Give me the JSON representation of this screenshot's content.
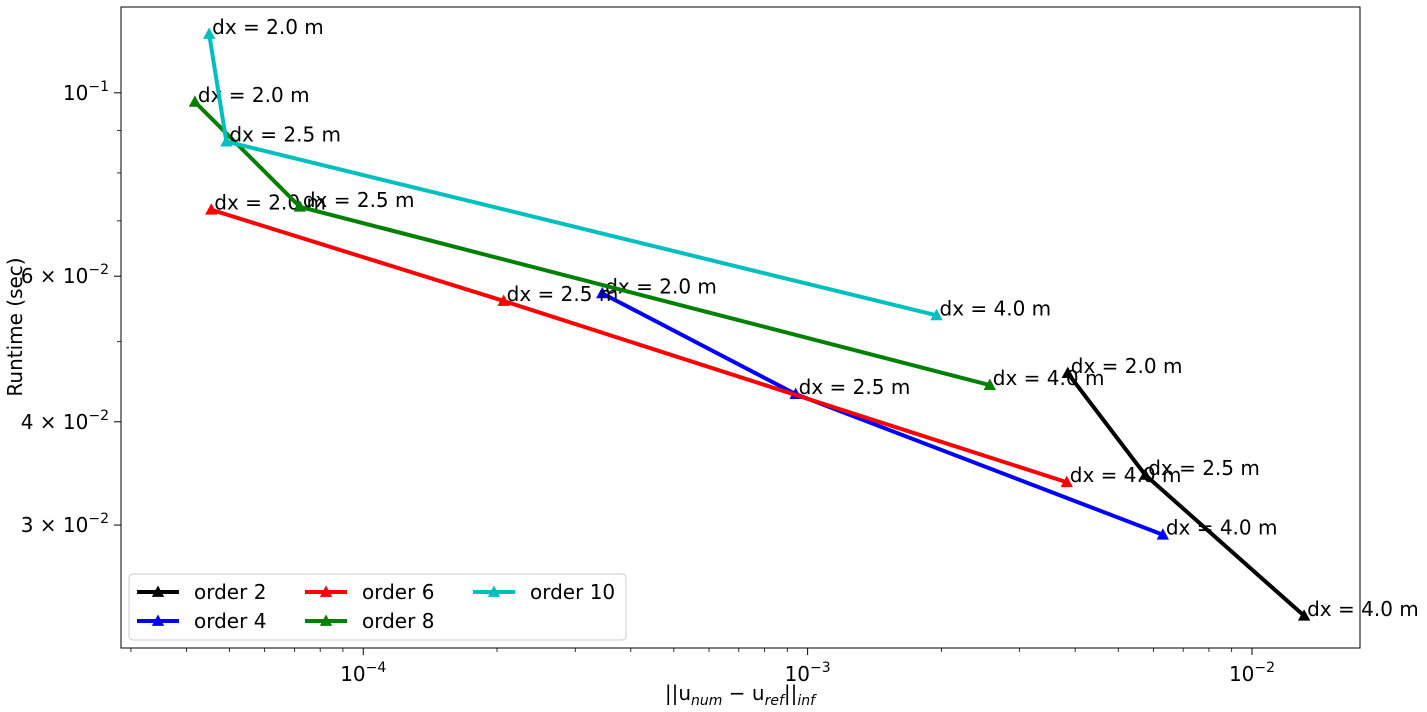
{
  "chart_data": {
    "type": "line",
    "title": "",
    "xscale": "log",
    "yscale": "log",
    "xlim": [
      2.85e-05,
      0.0175
    ],
    "ylim": [
      0.0213,
      0.127
    ],
    "xlabel": {
      "prefix": "||u",
      "sub1": "num",
      "mid": " − u",
      "sub2": "ref",
      "suffix": "||",
      "sub3": "inf"
    },
    "ylabel": "Runtime (sec)",
    "x_major_ticks": [
      {
        "value": 0.0001,
        "base": "10",
        "exp": "−4"
      },
      {
        "value": 0.001,
        "base": "10",
        "exp": "−3"
      },
      {
        "value": 0.01,
        "base": "10",
        "exp": "−2"
      }
    ],
    "y_major_ticks": [
      {
        "value": 0.1,
        "pre": "10",
        "exp": "−1"
      },
      {
        "value": 0.06,
        "pre": "6 × 10",
        "exp": "−2"
      },
      {
        "value": 0.04,
        "pre": "4 × 10",
        "exp": "−2"
      },
      {
        "value": 0.03,
        "pre": "3 × 10",
        "exp": "−2"
      }
    ],
    "grid": false,
    "legend": {
      "placement": "lower-left",
      "columns": 3
    },
    "series": [
      {
        "name": "order 2",
        "color": "#000000",
        "marker": "triangle-up",
        "points": [
          {
            "x": 0.00385,
            "y": 0.0458,
            "label": "dx = 2.0 m"
          },
          {
            "x": 0.00575,
            "y": 0.0345,
            "label": "dx = 2.5 m"
          },
          {
            "x": 0.0131,
            "y": 0.0233,
            "label": "dx = 4.0 m"
          }
        ]
      },
      {
        "name": "order 4",
        "color": "#0000ff",
        "marker": "triangle-up",
        "points": [
          {
            "x": 0.000345,
            "y": 0.0572,
            "label": "dx = 2.0 m"
          },
          {
            "x": 0.00094,
            "y": 0.0432,
            "label": "dx = 2.5 m"
          },
          {
            "x": 0.0063,
            "y": 0.0292,
            "label": "dx = 4.0 m"
          }
        ]
      },
      {
        "name": "order 6",
        "color": "#ff0000",
        "marker": "triangle-up",
        "points": [
          {
            "x": 4.55e-05,
            "y": 0.0722,
            "label": "dx = 2.0 m"
          },
          {
            "x": 0.000207,
            "y": 0.056,
            "label": "dx = 2.5 m"
          },
          {
            "x": 0.00383,
            "y": 0.0338,
            "label": "dx = 4.0 m"
          }
        ]
      },
      {
        "name": "order 8",
        "color": "#008000",
        "marker": "triangle-up",
        "points": [
          {
            "x": 4.18e-05,
            "y": 0.0975,
            "label": "dx = 2.0 m"
          },
          {
            "x": 7.2e-05,
            "y": 0.0728,
            "label": "dx = 2.5 m"
          },
          {
            "x": 0.00257,
            "y": 0.0443,
            "label": "dx = 4.0 m"
          }
        ]
      },
      {
        "name": "order 10",
        "color": "#00bfbf",
        "marker": "triangle-up",
        "points": [
          {
            "x": 4.5e-05,
            "y": 0.1178,
            "label": "dx = 2.0 m"
          },
          {
            "x": 4.92e-05,
            "y": 0.0873,
            "label": "dx = 2.5 m"
          },
          {
            "x": 0.00195,
            "y": 0.0538,
            "label": "dx = 4.0 m"
          }
        ]
      }
    ]
  }
}
